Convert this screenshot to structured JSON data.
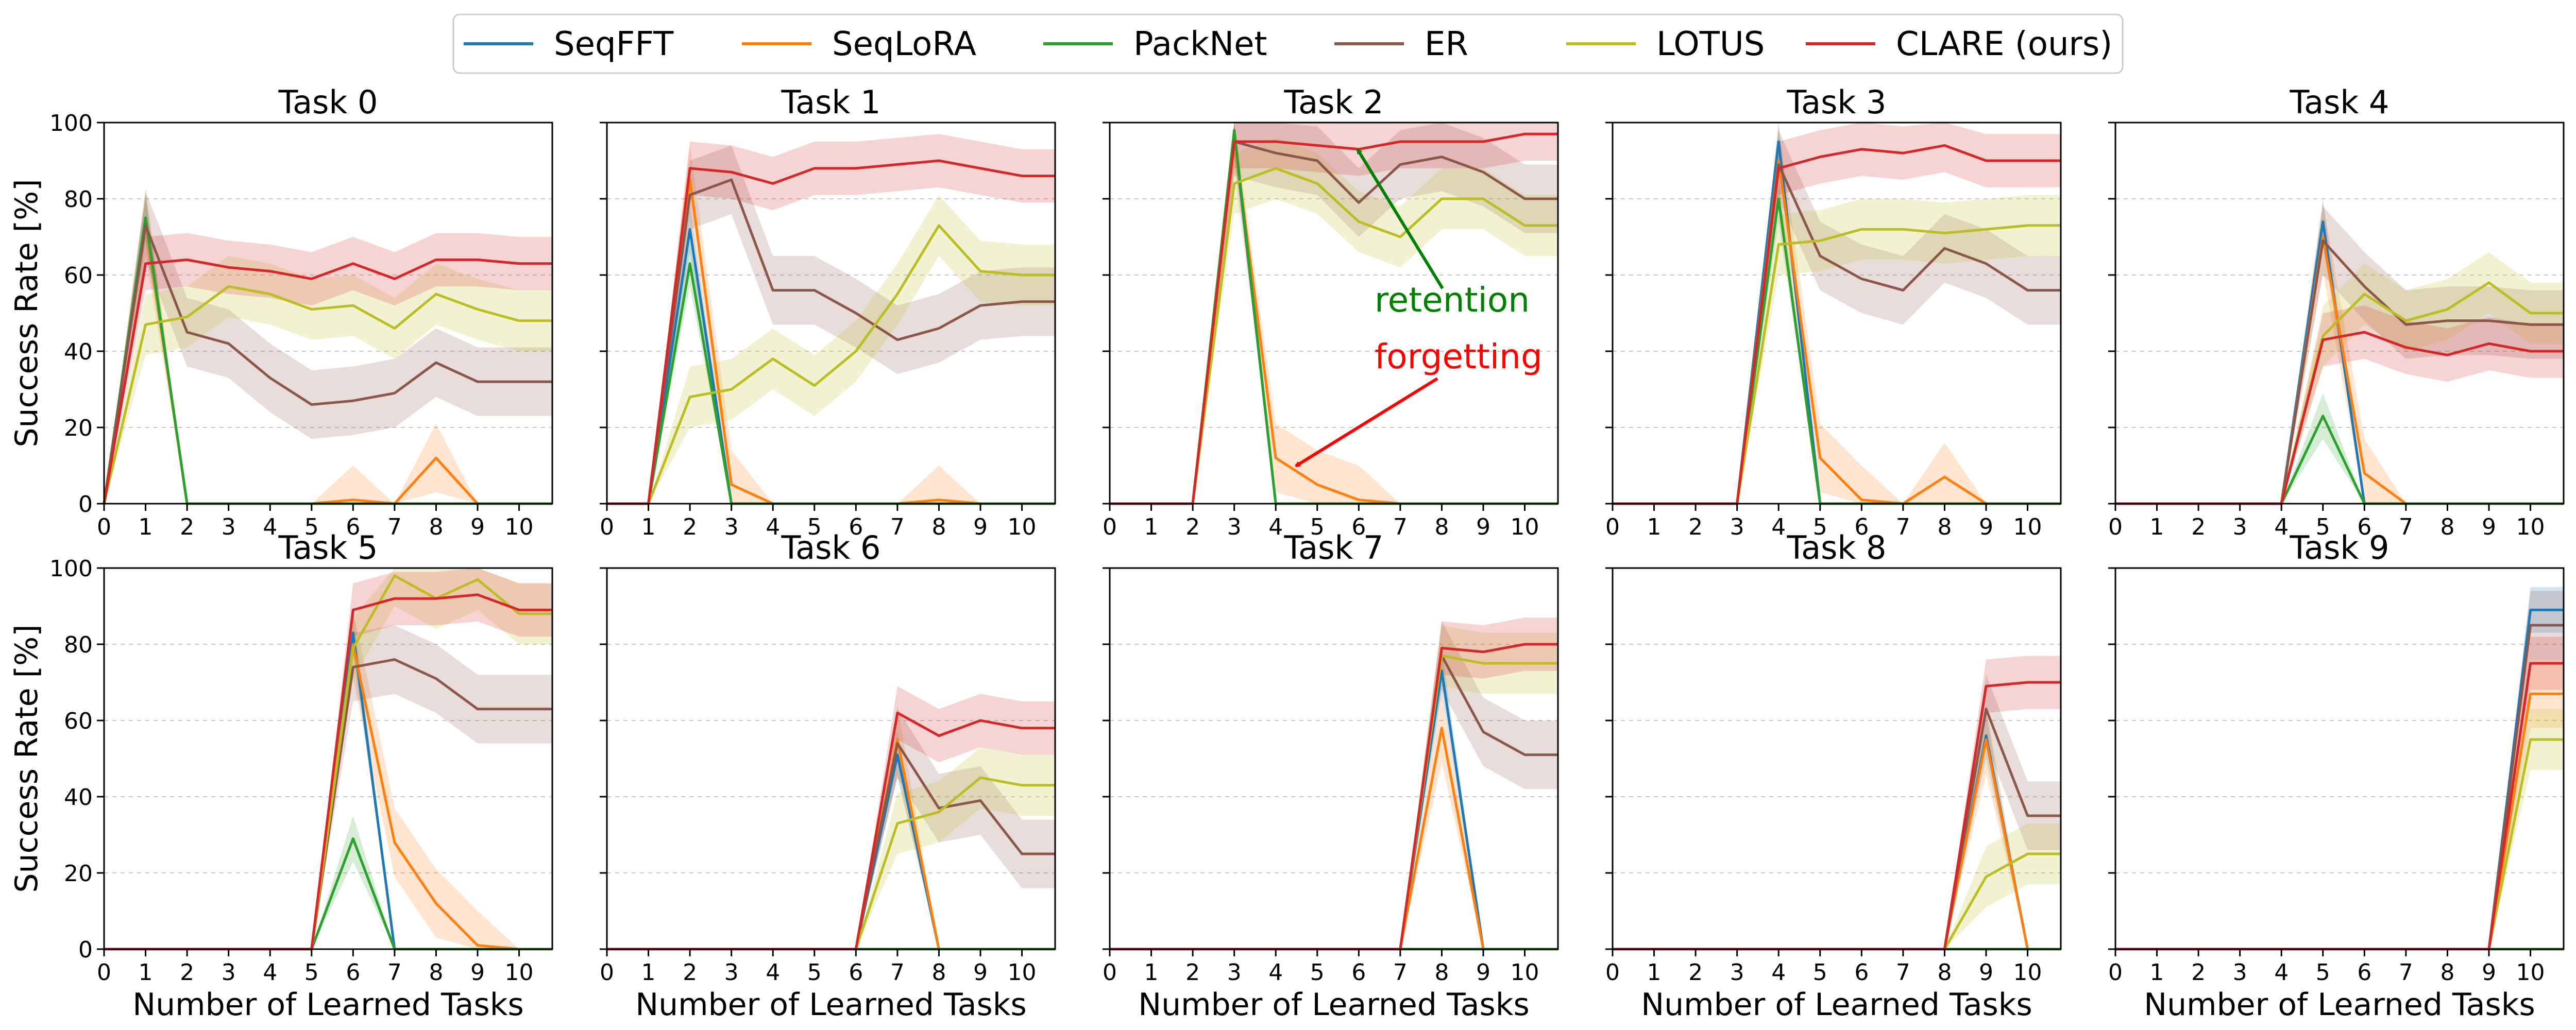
{
  "legend": [
    {
      "name": "SeqFFT",
      "color": "#1f77b4"
    },
    {
      "name": "SeqLoRA",
      "color": "#ff7f0e"
    },
    {
      "name": "PackNet",
      "color": "#2ca02c"
    },
    {
      "name": "ER",
      "color": "#8c564b"
    },
    {
      "name": "LOTUS",
      "color": "#bcbd22"
    },
    {
      "name": "CLARE (ours)",
      "color": "#d62728"
    }
  ],
  "annotations": {
    "retention": {
      "text": "retention",
      "color": "#008000"
    },
    "forgetting": {
      "text": "forgetting",
      "color": "#ff0000"
    }
  },
  "chart_data": {
    "type": "line",
    "xlabel": "Number of Learned Tasks",
    "ylabel": "Success Rate [%]",
    "x": [
      0,
      1,
      2,
      3,
      4,
      5,
      6,
      7,
      8,
      9,
      10,
      10.8
    ],
    "xticks": [
      0,
      1,
      2,
      3,
      4,
      5,
      6,
      7,
      8,
      9,
      10
    ],
    "xlim": [
      0,
      10.8
    ],
    "ylim": [
      0,
      100
    ],
    "yticks": [
      0,
      20,
      40,
      60,
      80,
      100
    ],
    "grid": "horizontal dashed",
    "legend_placement": "top-center",
    "series_names": [
      "SeqFFT",
      "SeqLoRA",
      "PackNet",
      "ER",
      "LOTUS",
      "CLARE (ours)"
    ],
    "subplots": [
      {
        "title": "Task 0",
        "series": {
          "SeqFFT": [
            0,
            75,
            0,
            0,
            0,
            0,
            0,
            0,
            0,
            0,
            0,
            0
          ],
          "SeqLoRA": [
            0,
            74,
            0,
            0,
            0,
            0,
            1,
            0,
            12,
            0,
            0,
            0
          ],
          "PackNet": [
            0,
            75,
            0,
            0,
            0,
            0,
            0,
            0,
            0,
            0,
            0,
            0
          ],
          "ER": [
            0,
            73,
            45,
            42,
            33,
            26,
            27,
            29,
            37,
            32,
            32,
            32
          ],
          "LOTUS": [
            0,
            47,
            49,
            57,
            55,
            51,
            52,
            46,
            55,
            51,
            48,
            48
          ],
          "CLARE (ours)": [
            0,
            63,
            64,
            62,
            61,
            59,
            63,
            59,
            64,
            64,
            63,
            63
          ]
        }
      },
      {
        "title": "Task 1",
        "series": {
          "SeqFFT": [
            0,
            0,
            72,
            0,
            0,
            0,
            0,
            0,
            0,
            0,
            0,
            0
          ],
          "SeqLoRA": [
            0,
            0,
            85,
            5,
            0,
            0,
            0,
            0,
            1,
            0,
            0,
            0
          ],
          "PackNet": [
            0,
            0,
            63,
            0,
            0,
            0,
            0,
            0,
            0,
            0,
            0,
            0
          ],
          "ER": [
            0,
            0,
            81,
            85,
            56,
            56,
            50,
            43,
            46,
            52,
            53,
            53
          ],
          "LOTUS": [
            0,
            0,
            28,
            30,
            38,
            31,
            40,
            55,
            73,
            61,
            60,
            60
          ],
          "CLARE (ours)": [
            0,
            0,
            88,
            87,
            84,
            88,
            88,
            89,
            90,
            88,
            86,
            86
          ]
        }
      },
      {
        "title": "Task 2",
        "series": {
          "SeqFFT": [
            0,
            0,
            0,
            97,
            0,
            0,
            0,
            0,
            0,
            0,
            0,
            0
          ],
          "SeqLoRA": [
            0,
            0,
            0,
            96,
            12,
            5,
            1,
            0,
            0,
            0,
            0,
            0
          ],
          "PackNet": [
            0,
            0,
            0,
            98,
            0,
            0,
            0,
            0,
            0,
            0,
            0,
            0
          ],
          "ER": [
            0,
            0,
            0,
            95,
            92,
            90,
            79,
            89,
            91,
            87,
            80,
            80
          ],
          "LOTUS": [
            0,
            0,
            0,
            84,
            88,
            84,
            74,
            70,
            80,
            80,
            73,
            73
          ],
          "CLARE (ours)": [
            0,
            0,
            0,
            95,
            95,
            94,
            93,
            95,
            95,
            95,
            97,
            97
          ]
        }
      },
      {
        "title": "Task 3",
        "series": {
          "SeqFFT": [
            0,
            0,
            0,
            0,
            95,
            0,
            0,
            0,
            0,
            0,
            0,
            0
          ],
          "SeqLoRA": [
            0,
            0,
            0,
            0,
            90,
            12,
            1,
            0,
            7,
            0,
            0,
            0
          ],
          "PackNet": [
            0,
            0,
            0,
            0,
            80,
            0,
            0,
            0,
            0,
            0,
            0,
            0
          ],
          "ER": [
            0,
            0,
            0,
            0,
            89,
            65,
            59,
            56,
            67,
            63,
            56,
            56
          ],
          "LOTUS": [
            0,
            0,
            0,
            0,
            68,
            69,
            72,
            72,
            71,
            72,
            73,
            73
          ],
          "CLARE (ours)": [
            0,
            0,
            0,
            0,
            88,
            91,
            93,
            92,
            94,
            90,
            90,
            90
          ]
        }
      },
      {
        "title": "Task 4",
        "series": {
          "SeqFFT": [
            0,
            0,
            0,
            0,
            0,
            74,
            0,
            0,
            0,
            0,
            0,
            0
          ],
          "SeqLoRA": [
            0,
            0,
            0,
            0,
            0,
            70,
            8,
            0,
            0,
            0,
            0,
            0
          ],
          "PackNet": [
            0,
            0,
            0,
            0,
            0,
            23,
            0,
            0,
            0,
            0,
            0,
            0
          ],
          "ER": [
            0,
            0,
            0,
            0,
            0,
            69,
            57,
            47,
            48,
            48,
            47,
            47
          ],
          "LOTUS": [
            0,
            0,
            0,
            0,
            0,
            44,
            55,
            48,
            51,
            58,
            50,
            50
          ],
          "CLARE (ours)": [
            0,
            0,
            0,
            0,
            0,
            43,
            45,
            41,
            39,
            42,
            40,
            40
          ]
        }
      },
      {
        "title": "Task 5",
        "series": {
          "SeqFFT": [
            0,
            0,
            0,
            0,
            0,
            0,
            83,
            0,
            0,
            0,
            0,
            0
          ],
          "SeqLoRA": [
            0,
            0,
            0,
            0,
            0,
            0,
            80,
            28,
            12,
            1,
            0,
            0
          ],
          "PackNet": [
            0,
            0,
            0,
            0,
            0,
            0,
            29,
            0,
            0,
            0,
            0,
            0
          ],
          "ER": [
            0,
            0,
            0,
            0,
            0,
            0,
            74,
            76,
            71,
            63,
            63,
            63
          ],
          "LOTUS": [
            0,
            0,
            0,
            0,
            0,
            0,
            79,
            98,
            92,
            97,
            88,
            88
          ],
          "CLARE (ours)": [
            0,
            0,
            0,
            0,
            0,
            0,
            89,
            92,
            92,
            93,
            89,
            89
          ]
        }
      },
      {
        "title": "Task 6",
        "series": {
          "SeqFFT": [
            0,
            0,
            0,
            0,
            0,
            0,
            0,
            51,
            0,
            0,
            0,
            0
          ],
          "SeqLoRA": [
            0,
            0,
            0,
            0,
            0,
            0,
            0,
            55,
            0,
            0,
            0,
            0
          ],
          "PackNet": [
            0,
            0,
            0,
            0,
            0,
            0,
            0,
            0,
            0,
            0,
            0,
            0
          ],
          "ER": [
            0,
            0,
            0,
            0,
            0,
            0,
            0,
            54,
            37,
            39,
            25,
            25
          ],
          "LOTUS": [
            0,
            0,
            0,
            0,
            0,
            0,
            0,
            33,
            36,
            45,
            43,
            43
          ],
          "CLARE (ours)": [
            0,
            0,
            0,
            0,
            0,
            0,
            0,
            62,
            56,
            60,
            58,
            58
          ]
        }
      },
      {
        "title": "Task 7",
        "series": {
          "SeqFFT": [
            0,
            0,
            0,
            0,
            0,
            0,
            0,
            0,
            73,
            0,
            0,
            0
          ],
          "SeqLoRA": [
            0,
            0,
            0,
            0,
            0,
            0,
            0,
            0,
            58,
            0,
            0,
            0
          ],
          "PackNet": [
            0,
            0,
            0,
            0,
            0,
            0,
            0,
            0,
            0,
            0,
            0,
            0
          ],
          "ER": [
            0,
            0,
            0,
            0,
            0,
            0,
            0,
            0,
            77,
            57,
            51,
            51
          ],
          "LOTUS": [
            0,
            0,
            0,
            0,
            0,
            0,
            0,
            0,
            77,
            75,
            75,
            75
          ],
          "CLARE (ours)": [
            0,
            0,
            0,
            0,
            0,
            0,
            0,
            0,
            79,
            78,
            80,
            80
          ]
        }
      },
      {
        "title": "Task 8",
        "series": {
          "SeqFFT": [
            0,
            0,
            0,
            0,
            0,
            0,
            0,
            0,
            0,
            56,
            0,
            0
          ],
          "SeqLoRA": [
            0,
            0,
            0,
            0,
            0,
            0,
            0,
            0,
            0,
            55,
            0,
            0
          ],
          "PackNet": [
            0,
            0,
            0,
            0,
            0,
            0,
            0,
            0,
            0,
            0,
            0,
            0
          ],
          "ER": [
            0,
            0,
            0,
            0,
            0,
            0,
            0,
            0,
            0,
            63,
            35,
            35
          ],
          "LOTUS": [
            0,
            0,
            0,
            0,
            0,
            0,
            0,
            0,
            0,
            19,
            25,
            25
          ],
          "CLARE (ours)": [
            0,
            0,
            0,
            0,
            0,
            0,
            0,
            0,
            0,
            69,
            70,
            70
          ]
        }
      },
      {
        "title": "Task 9",
        "series": {
          "SeqFFT": [
            0,
            0,
            0,
            0,
            0,
            0,
            0,
            0,
            0,
            0,
            89,
            89
          ],
          "SeqLoRA": [
            0,
            0,
            0,
            0,
            0,
            0,
            0,
            0,
            0,
            0,
            67,
            67
          ],
          "PackNet": [
            0,
            0,
            0,
            0,
            0,
            0,
            0,
            0,
            0,
            0,
            0,
            0
          ],
          "ER": [
            0,
            0,
            0,
            0,
            0,
            0,
            0,
            0,
            0,
            0,
            85,
            85
          ],
          "LOTUS": [
            0,
            0,
            0,
            0,
            0,
            0,
            0,
            0,
            0,
            0,
            55,
            55
          ],
          "CLARE (ours)": [
            0,
            0,
            0,
            0,
            0,
            0,
            0,
            0,
            0,
            0,
            75,
            75
          ]
        }
      }
    ]
  }
}
